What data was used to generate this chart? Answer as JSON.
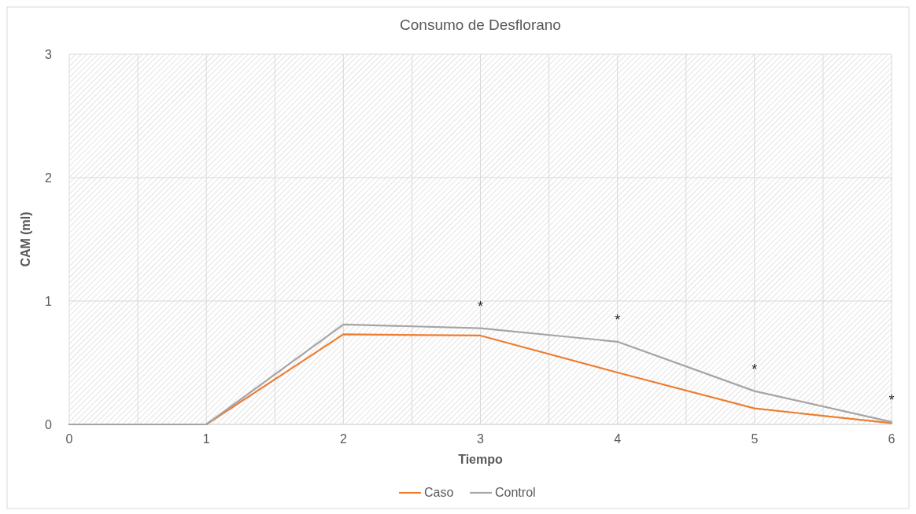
{
  "chart_data": {
    "type": "line",
    "title": "Consumo de Desflorano",
    "xlabel": "Tiempo",
    "ylabel": "CAM (ml)",
    "x": [
      0,
      1,
      2,
      3,
      4,
      5,
      6
    ],
    "series": [
      {
        "name": "Caso",
        "color": "#ed7d31",
        "values": [
          0,
          0,
          0.73,
          0.72,
          0.42,
          0.13,
          0.01
        ]
      },
      {
        "name": "Control",
        "color": "#a5a5a5",
        "values": [
          0,
          0,
          0.81,
          0.78,
          0.67,
          0.27,
          0.02
        ]
      }
    ],
    "xlim": [
      0,
      6
    ],
    "xticks": [
      0,
      {
        "value": 0.5,
        "label": null
      },
      1,
      {
        "value": 1.5,
        "label": null
      },
      2,
      {
        "value": 2.5,
        "label": null
      },
      3,
      {
        "value": 3.5,
        "label": null
      },
      4,
      {
        "value": 4.5,
        "label": null
      },
      5,
      {
        "value": 5.5,
        "label": null
      },
      6
    ],
    "ylim": [
      0,
      3
    ],
    "yticks": [
      0,
      1,
      2,
      3
    ],
    "grid": true,
    "legend": "bottom",
    "marker": "none",
    "line_style": "solid",
    "annotations": [
      {
        "text": "*",
        "x": 3,
        "y": 0.78
      },
      {
        "text": "*",
        "x": 4,
        "y": 0.67
      },
      {
        "text": "*",
        "x": 5,
        "y": 0.27
      },
      {
        "text": "*",
        "x": 6,
        "y": 0.02
      }
    ]
  }
}
